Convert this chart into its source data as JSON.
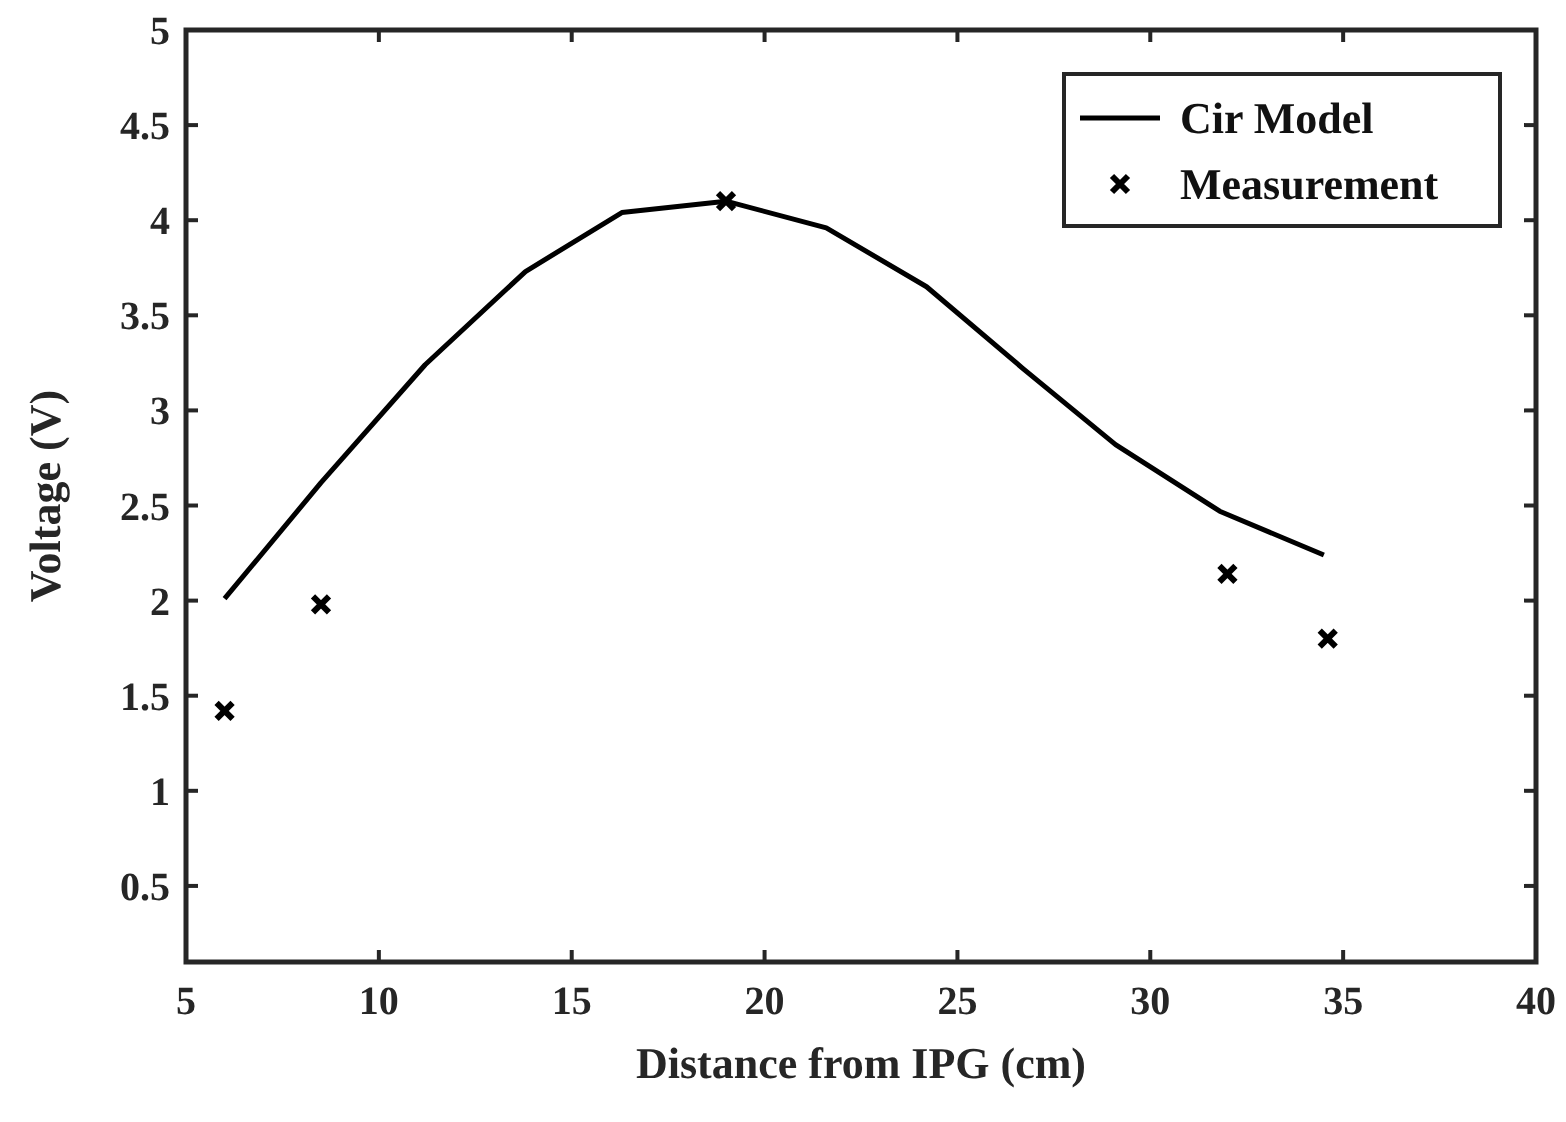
{
  "chart_data": {
    "type": "line",
    "xlabel": "Distance from IPG (cm)",
    "ylabel": "Voltage (V)",
    "xlim": [
      5,
      40
    ],
    "xticks": [
      5,
      10,
      15,
      20,
      25,
      30,
      35,
      40
    ],
    "ylim": [
      0.1,
      5
    ],
    "yticks": [
      0.5,
      1,
      1.5,
      2,
      2.5,
      3,
      3.5,
      4,
      4.5,
      5
    ],
    "legend": "top right",
    "grid": false,
    "series": [
      {
        "name": "Cir Model",
        "type": "line",
        "color": "#000000",
        "marker": "none",
        "line_style": "solid",
        "x": [
          6,
          8.5,
          11.2,
          13.8,
          16.3,
          19,
          21.6,
          24.2,
          26.7,
          29.1,
          31.8,
          34.5
        ],
        "values": [
          2.01,
          2.62,
          3.24,
          3.73,
          4.04,
          4.1,
          3.96,
          3.65,
          3.22,
          2.82,
          2.47,
          2.24
        ]
      },
      {
        "name": "Measurement",
        "type": "scatter",
        "color": "#000000",
        "marker": "cross",
        "x": [
          6,
          8.5,
          19,
          32,
          34.6
        ],
        "values": [
          1.42,
          1.98,
          4.1,
          2.14,
          1.8
        ]
      }
    ]
  }
}
